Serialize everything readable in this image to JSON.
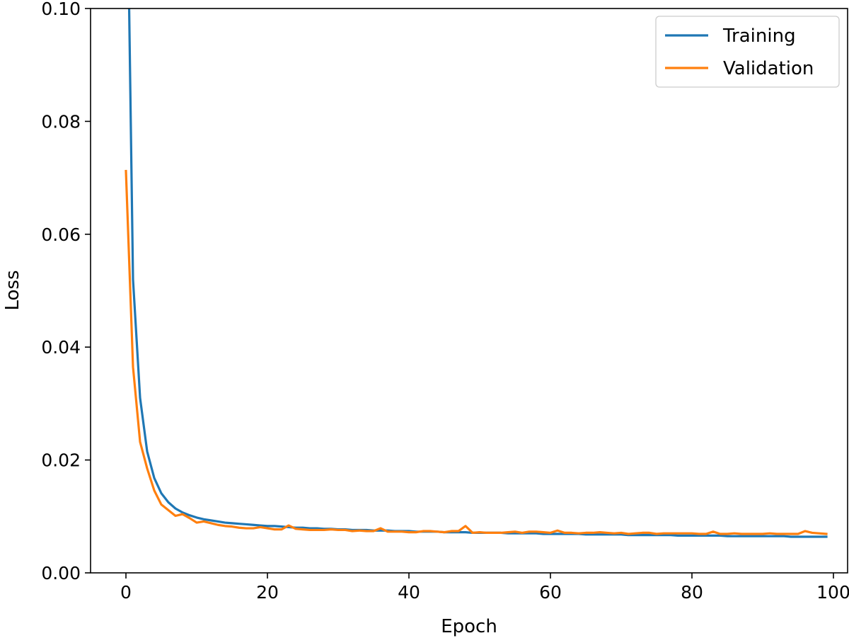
{
  "chart_data": {
    "type": "line",
    "title": "",
    "xlabel": "Epoch",
    "ylabel": "Loss",
    "xlim": [
      -5,
      102
    ],
    "ylim": [
      0.0,
      0.1
    ],
    "x_ticks": [
      0,
      20,
      40,
      60,
      80,
      100
    ],
    "x_tick_labels": [
      "0",
      "20",
      "40",
      "60",
      "80",
      "100"
    ],
    "y_ticks": [
      0.0,
      0.02,
      0.04,
      0.06,
      0.08,
      0.1
    ],
    "y_tick_labels": [
      "0.00",
      "0.02",
      "0.04",
      "0.06",
      "0.08",
      "0.10"
    ],
    "grid": false,
    "legend_position": "top-right",
    "series": [
      {
        "name": "Training",
        "color": "#1f77b4",
        "x": [
          0,
          1,
          2,
          3,
          4,
          5,
          6,
          7,
          8,
          9,
          10,
          11,
          12,
          13,
          14,
          15,
          16,
          17,
          18,
          19,
          20,
          21,
          22,
          23,
          24,
          25,
          26,
          27,
          28,
          29,
          30,
          31,
          32,
          33,
          34,
          35,
          36,
          37,
          38,
          39,
          40,
          41,
          42,
          43,
          44,
          45,
          46,
          47,
          48,
          49,
          50,
          51,
          52,
          53,
          54,
          55,
          56,
          57,
          58,
          59,
          60,
          61,
          62,
          63,
          64,
          65,
          66,
          67,
          68,
          69,
          70,
          71,
          72,
          73,
          74,
          75,
          76,
          77,
          78,
          79,
          80,
          81,
          82,
          83,
          84,
          85,
          86,
          87,
          88,
          89,
          90,
          91,
          92,
          93,
          94,
          95,
          96,
          97,
          98,
          99
        ],
        "values": [
          0.14,
          0.052,
          0.031,
          0.0215,
          0.0168,
          0.0141,
          0.0125,
          0.0114,
          0.0107,
          0.0102,
          0.0098,
          0.0095,
          0.0093,
          0.0091,
          0.0089,
          0.0088,
          0.0087,
          0.0086,
          0.0085,
          0.0084,
          0.0083,
          0.0083,
          0.0082,
          0.0081,
          0.008,
          0.008,
          0.0079,
          0.0079,
          0.0078,
          0.0078,
          0.0077,
          0.0077,
          0.0076,
          0.0076,
          0.0076,
          0.0075,
          0.0075,
          0.0075,
          0.0074,
          0.0074,
          0.0074,
          0.0073,
          0.0073,
          0.0073,
          0.0073,
          0.0072,
          0.0072,
          0.0072,
          0.0072,
          0.0071,
          0.0071,
          0.0071,
          0.0071,
          0.0071,
          0.007,
          0.007,
          0.007,
          0.007,
          0.007,
          0.0069,
          0.0069,
          0.0069,
          0.0069,
          0.0069,
          0.0069,
          0.0068,
          0.0068,
          0.0068,
          0.0068,
          0.0068,
          0.0068,
          0.0067,
          0.0067,
          0.0067,
          0.0067,
          0.0067,
          0.0067,
          0.0067,
          0.0066,
          0.0066,
          0.0066,
          0.0066,
          0.0066,
          0.0066,
          0.0066,
          0.0065,
          0.0065,
          0.0065,
          0.0065,
          0.0065,
          0.0065,
          0.0065,
          0.0065,
          0.0065,
          0.0064,
          0.0064,
          0.0064,
          0.0064,
          0.0064,
          0.0064
        ]
      },
      {
        "name": "Validation",
        "color": "#ff7f0e",
        "x": [
          0,
          1,
          2,
          3,
          4,
          5,
          6,
          7,
          8,
          9,
          10,
          11,
          12,
          13,
          14,
          15,
          16,
          17,
          18,
          19,
          20,
          21,
          22,
          23,
          24,
          25,
          26,
          27,
          28,
          29,
          30,
          31,
          32,
          33,
          34,
          35,
          36,
          37,
          38,
          39,
          40,
          41,
          42,
          43,
          44,
          45,
          46,
          47,
          48,
          49,
          50,
          51,
          52,
          53,
          54,
          55,
          56,
          57,
          58,
          59,
          60,
          61,
          62,
          63,
          64,
          65,
          66,
          67,
          68,
          69,
          70,
          71,
          72,
          73,
          74,
          75,
          76,
          77,
          78,
          79,
          80,
          81,
          82,
          83,
          84,
          85,
          86,
          87,
          88,
          89,
          90,
          91,
          92,
          93,
          94,
          95,
          96,
          97,
          98,
          99
        ],
        "values": [
          0.0712,
          0.0365,
          0.0232,
          0.0185,
          0.0146,
          0.0121,
          0.0111,
          0.0101,
          0.0104,
          0.0097,
          0.0089,
          0.0091,
          0.0088,
          0.0085,
          0.0083,
          0.0082,
          0.008,
          0.0079,
          0.0079,
          0.0081,
          0.0079,
          0.0077,
          0.0077,
          0.0084,
          0.0078,
          0.0077,
          0.0076,
          0.0076,
          0.0076,
          0.0077,
          0.0076,
          0.0076,
          0.0074,
          0.0075,
          0.0074,
          0.0074,
          0.0079,
          0.0073,
          0.0073,
          0.0073,
          0.0072,
          0.0072,
          0.0074,
          0.0074,
          0.0073,
          0.0072,
          0.0074,
          0.0074,
          0.0083,
          0.0071,
          0.0072,
          0.0071,
          0.0071,
          0.0071,
          0.0072,
          0.0073,
          0.0071,
          0.0073,
          0.0073,
          0.0072,
          0.0071,
          0.0075,
          0.0071,
          0.0071,
          0.007,
          0.0071,
          0.0071,
          0.0072,
          0.0071,
          0.007,
          0.0071,
          0.0069,
          0.007,
          0.0071,
          0.0071,
          0.0069,
          0.007,
          0.007,
          0.007,
          0.007,
          0.007,
          0.0069,
          0.0069,
          0.0073,
          0.0069,
          0.0069,
          0.007,
          0.0069,
          0.0069,
          0.0069,
          0.0069,
          0.007,
          0.0069,
          0.0069,
          0.0069,
          0.0069,
          0.0074,
          0.0071,
          0.007,
          0.0069
        ]
      }
    ]
  }
}
